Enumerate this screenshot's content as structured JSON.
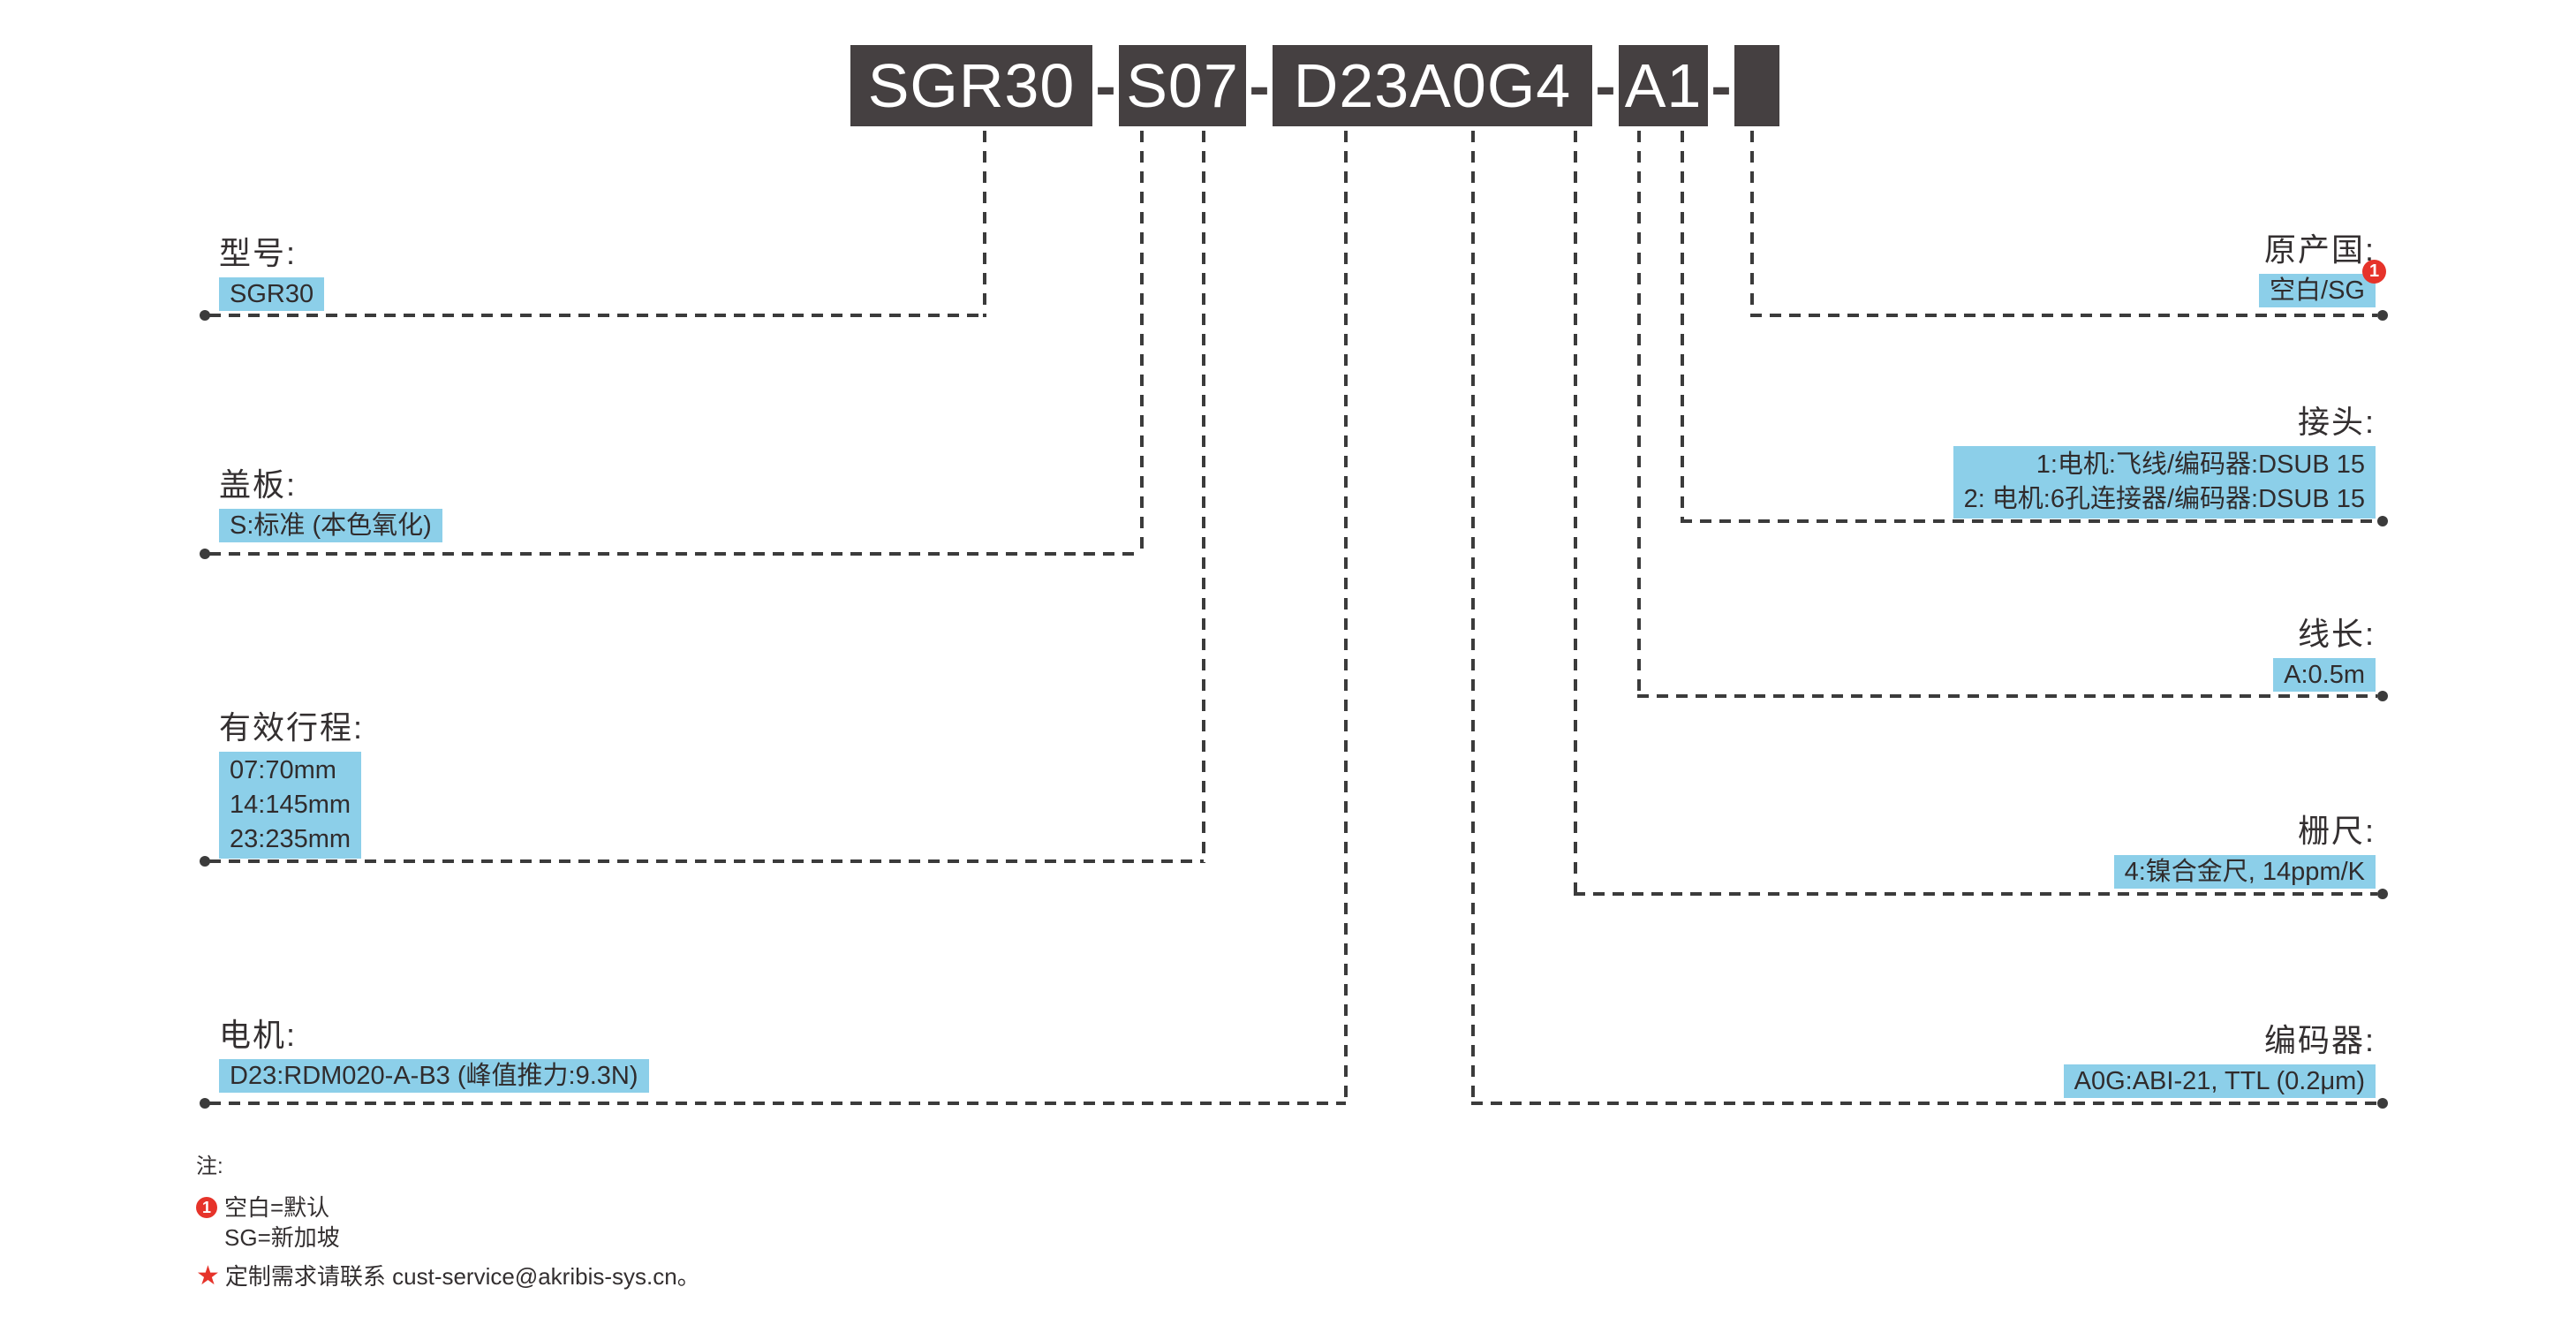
{
  "part_number": {
    "separator": "-",
    "segments": [
      {
        "code": "SGR30"
      },
      {
        "code": "S07"
      },
      {
        "code": "D23A0G4"
      },
      {
        "code": "A1"
      },
      {
        "code": ""
      }
    ]
  },
  "labels": {
    "model": {
      "title": "型号:",
      "options": [
        "SGR30"
      ]
    },
    "cover": {
      "title": "盖板:",
      "options": [
        "S:标准 (本色氧化)"
      ]
    },
    "stroke": {
      "title": "有效行程:",
      "options": [
        "07:70mm",
        "14:145mm",
        "23:235mm"
      ]
    },
    "motor": {
      "title": "电机:",
      "options": [
        "D23:RDM020-A-B3 (峰值推力:9.3N)"
      ]
    },
    "origin": {
      "title": "原产国:",
      "options": [
        "空白/SG"
      ],
      "badge": "1"
    },
    "connector": {
      "title": "接头:",
      "options": [
        "1:电机:飞线/编码器:DSUB 15",
        "2: 电机:6孔连接器/编码器:DSUB 15"
      ]
    },
    "cable": {
      "title": "线长:",
      "options": [
        "A:0.5m"
      ]
    },
    "scale": {
      "title": "栅尺:",
      "options": [
        "4:镍合金尺, 14ppm/K"
      ]
    },
    "encoder": {
      "title": "编码器:",
      "options": [
        "A0G:ABI-21, TTL (0.2μm)"
      ]
    }
  },
  "notes": {
    "header": "注:",
    "note1_marker": "1",
    "note1_line1": "空白=默认",
    "note1_line2": "SG=新加坡",
    "star_symbol": "★",
    "star_note": "定制需求请联系 cust-service@akribis-sys.cn。"
  },
  "colors": {
    "segment_box": "#454041",
    "highlight_blue": "#8CCFE9",
    "accent_red": "#E6332A",
    "line_dark": "#3B3B3B"
  }
}
